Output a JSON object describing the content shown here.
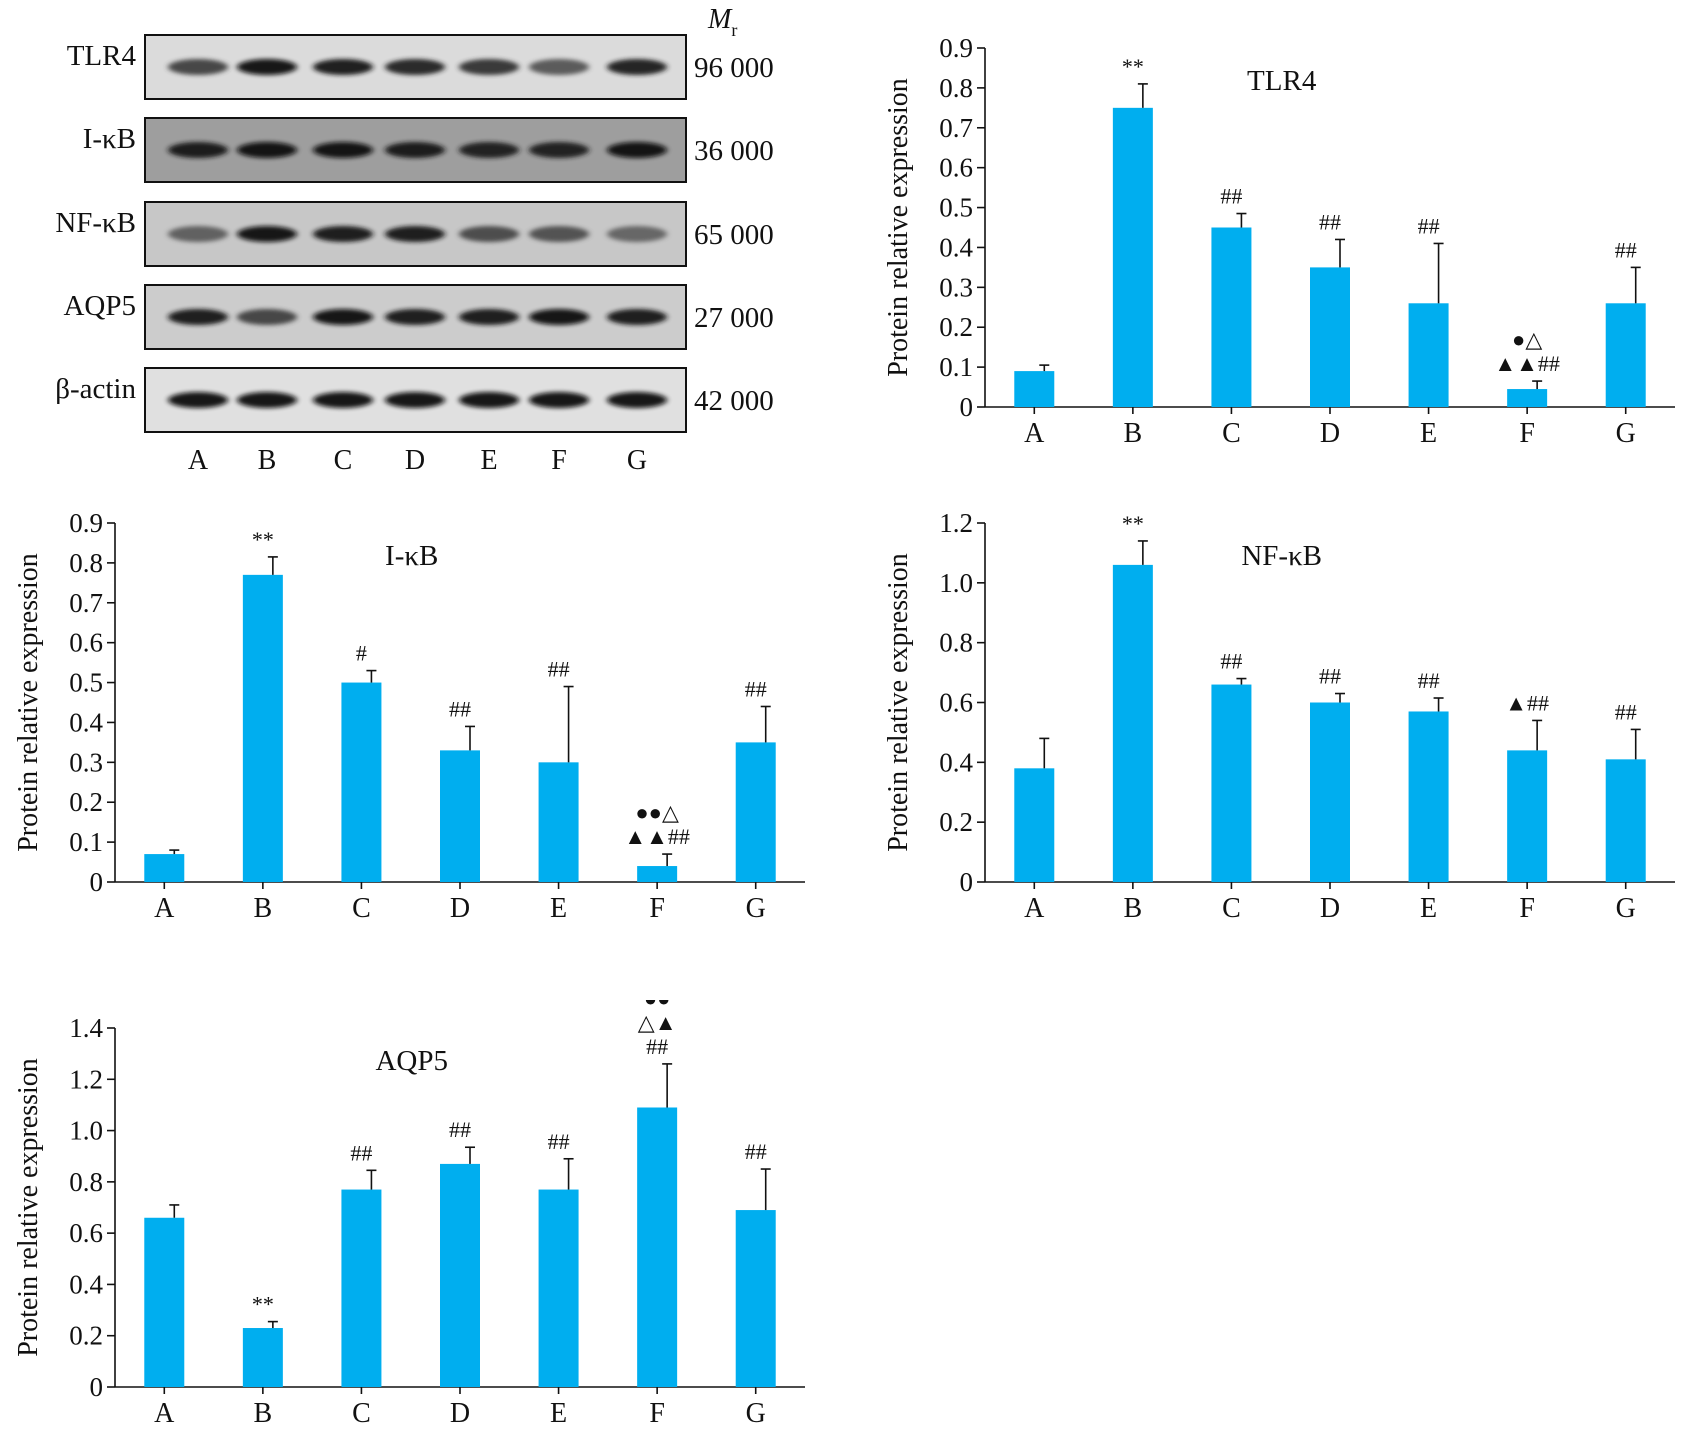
{
  "blot": {
    "mr_label": "M",
    "mr_sub": "r",
    "lanes": [
      "A",
      "B",
      "C",
      "D",
      "E",
      "F",
      "G"
    ],
    "rows": [
      {
        "label": "TLR4",
        "mr": "96 000",
        "intensity": [
          0.55,
          0.95,
          0.85,
          0.75,
          0.65,
          0.4,
          0.8
        ],
        "bg": 0.86
      },
      {
        "label": "I-κB",
        "mr": "36 000",
        "intensity": [
          0.85,
          0.95,
          0.9,
          0.85,
          0.8,
          0.8,
          0.95
        ],
        "bg": 0.62
      },
      {
        "label": "NF-κB",
        "mr": "65 000",
        "intensity": [
          0.35,
          0.9,
          0.85,
          0.85,
          0.5,
          0.45,
          0.3
        ],
        "bg": 0.78
      },
      {
        "label": "AQP5",
        "mr": "27 000",
        "intensity": [
          0.85,
          0.55,
          0.9,
          0.85,
          0.85,
          0.95,
          0.85
        ],
        "bg": 0.8
      },
      {
        "label": "β-actin",
        "mr": "42 000",
        "intensity": [
          0.9,
          0.9,
          0.9,
          0.9,
          0.95,
          0.95,
          0.95
        ],
        "bg": 0.88
      }
    ]
  },
  "chart_data": [
    {
      "type": "bar",
      "title": "TLR4",
      "xlabel": "",
      "ylabel": "Protein relative expression",
      "categories": [
        "A",
        "B",
        "C",
        "D",
        "E",
        "F",
        "G"
      ],
      "values": [
        0.09,
        0.75,
        0.45,
        0.35,
        0.26,
        0.045,
        0.26
      ],
      "errors": [
        0.015,
        0.06,
        0.035,
        0.07,
        0.15,
        0.02,
        0.09
      ],
      "annotations": [
        [],
        [
          "**"
        ],
        [
          "##"
        ],
        [
          "##"
        ],
        [
          "##"
        ],
        [
          "●△",
          "▲▲##"
        ],
        [
          "##"
        ]
      ],
      "ylim": [
        0,
        0.9
      ],
      "ytick_labels": [
        "0",
        "0.1",
        "0.2",
        "0.3",
        "0.4",
        "0.5",
        "0.6",
        "0.7",
        "0.8",
        "0.9"
      ],
      "color": "#00aeef"
    },
    {
      "type": "bar",
      "title": "I-κB",
      "xlabel": "",
      "ylabel": "Protein relative expression",
      "categories": [
        "A",
        "B",
        "C",
        "D",
        "E",
        "F",
        "G"
      ],
      "values": [
        0.07,
        0.77,
        0.5,
        0.33,
        0.3,
        0.04,
        0.35
      ],
      "errors": [
        0.01,
        0.045,
        0.03,
        0.06,
        0.19,
        0.03,
        0.09
      ],
      "annotations": [
        [],
        [
          "**"
        ],
        [
          "#"
        ],
        [
          "##"
        ],
        [
          "##"
        ],
        [
          "●●△",
          "▲▲##"
        ],
        [
          "##"
        ]
      ],
      "ylim": [
        0,
        0.9
      ],
      "ytick_labels": [
        "0",
        "0.1",
        "0.2",
        "0.3",
        "0.4",
        "0.5",
        "0.6",
        "0.7",
        "0.8",
        "0.9"
      ],
      "color": "#00aeef"
    },
    {
      "type": "bar",
      "title": "NF-κB",
      "xlabel": "",
      "ylabel": "Protein relative expression",
      "categories": [
        "A",
        "B",
        "C",
        "D",
        "E",
        "F",
        "G"
      ],
      "values": [
        0.38,
        1.06,
        0.66,
        0.6,
        0.57,
        0.44,
        0.41
      ],
      "errors": [
        0.1,
        0.08,
        0.02,
        0.03,
        0.045,
        0.1,
        0.1
      ],
      "annotations": [
        [],
        [
          "**"
        ],
        [
          "##"
        ],
        [
          "##"
        ],
        [
          "##"
        ],
        [
          "▲##"
        ],
        [
          "##"
        ]
      ],
      "ylim": [
        0,
        1.2
      ],
      "ytick_labels": [
        "0",
        "0.2",
        "0.4",
        "0.6",
        "0.8",
        "1.0",
        "1.2"
      ],
      "color": "#00aeef"
    },
    {
      "type": "bar",
      "title": "AQP5",
      "xlabel": "",
      "ylabel": "Protein relative expression",
      "categories": [
        "A",
        "B",
        "C",
        "D",
        "E",
        "F",
        "G"
      ],
      "values": [
        0.66,
        0.23,
        0.77,
        0.87,
        0.77,
        1.09,
        0.69
      ],
      "errors": [
        0.05,
        0.025,
        0.075,
        0.065,
        0.12,
        0.17,
        0.16
      ],
      "annotations": [
        [],
        [
          "**"
        ],
        [
          "##"
        ],
        [
          "##"
        ],
        [
          "##"
        ],
        [
          "●●",
          "△▲",
          "##"
        ],
        [
          "##"
        ]
      ],
      "ylim": [
        0,
        1.4
      ],
      "ytick_labels": [
        "0",
        "0.2",
        "0.4",
        "0.6",
        "0.8",
        "1.0",
        "1.2",
        "1.4"
      ],
      "color": "#00aeef"
    }
  ]
}
